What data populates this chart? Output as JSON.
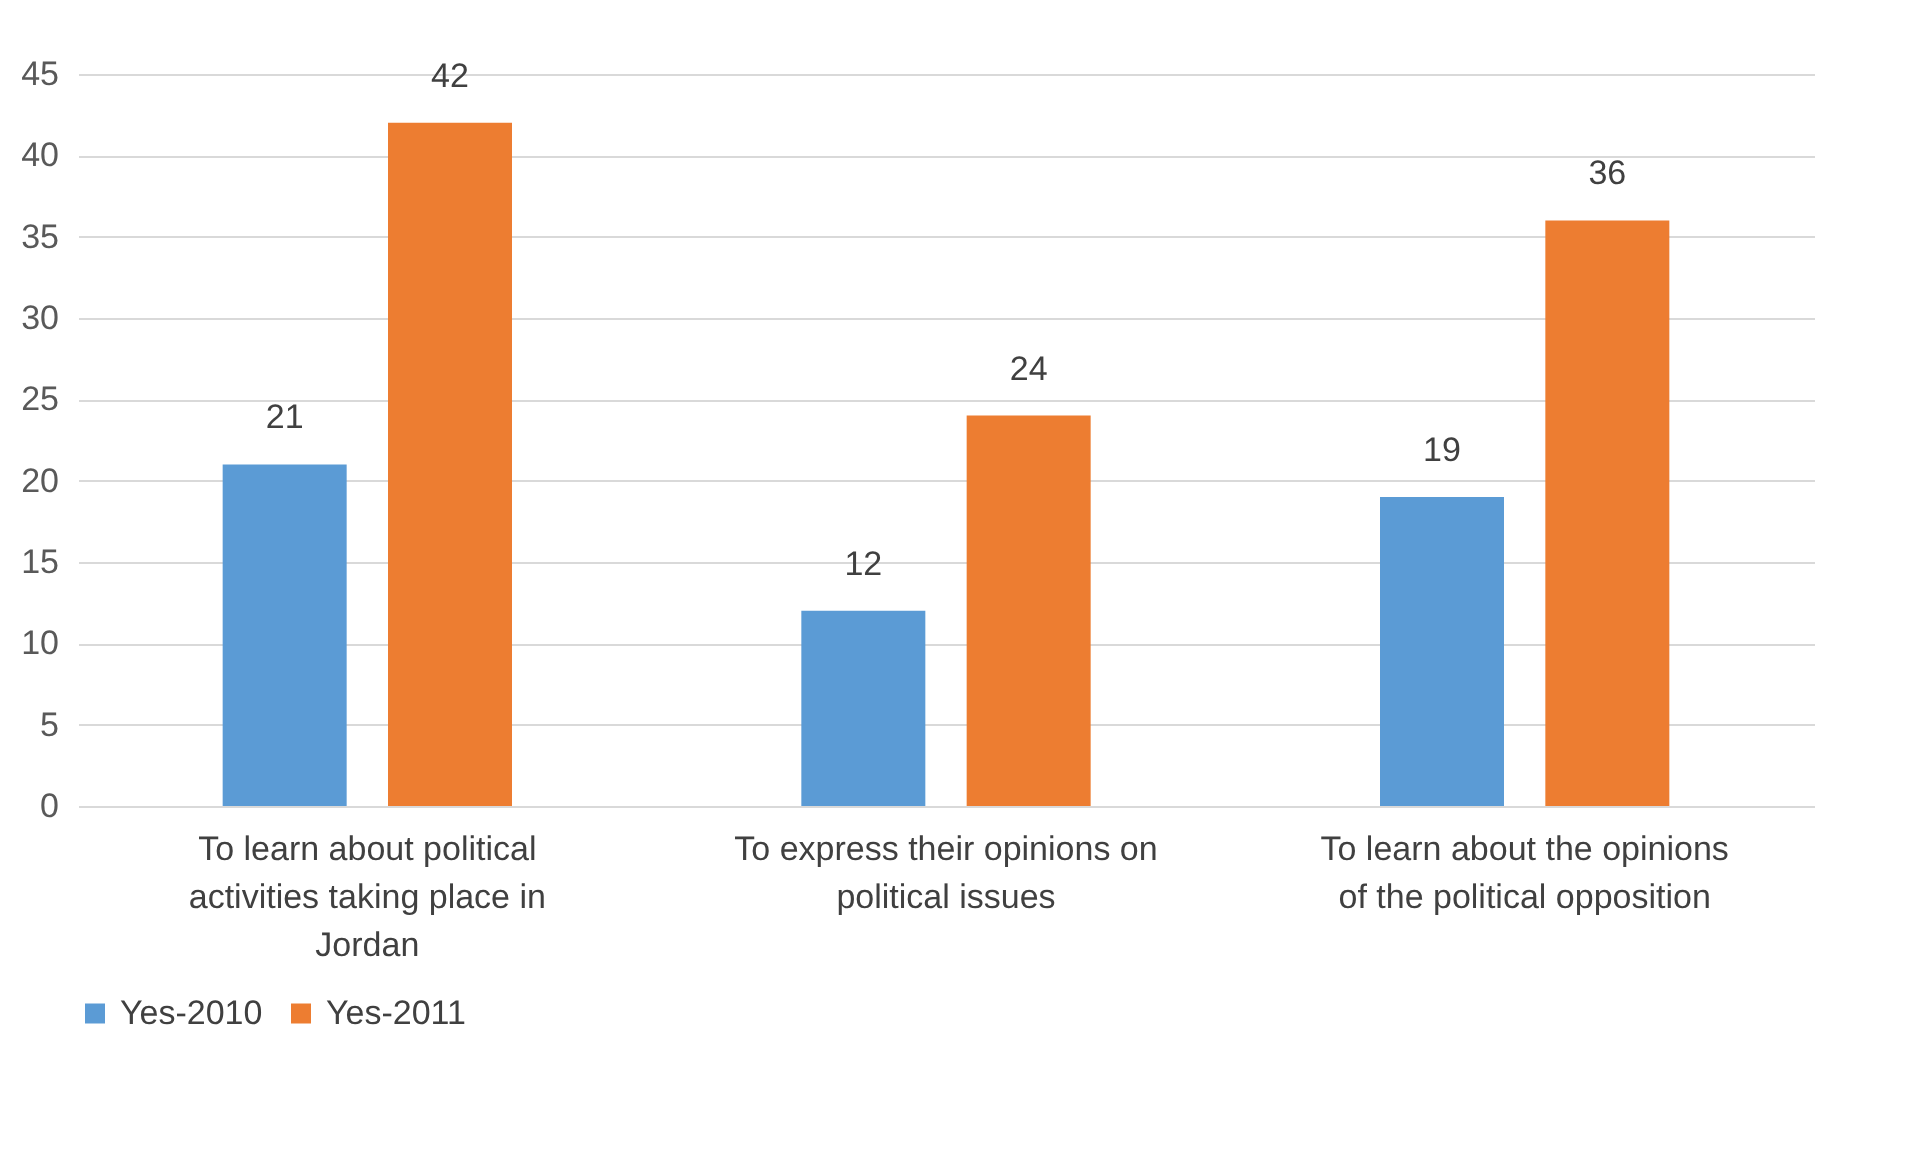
{
  "chart_data": {
    "type": "bar",
    "categories": [
      "To learn about political activities taking place in Jordan",
      "To express their opinions on political issues",
      "To learn about the opinions of the political opposition"
    ],
    "series": [
      {
        "name": "Yes-2010",
        "color": "#5b9bd5",
        "values": [
          21,
          12,
          19
        ]
      },
      {
        "name": "Yes-2011",
        "color": "#ed7d31",
        "values": [
          42,
          24,
          36
        ]
      }
    ],
    "ylim": [
      0,
      45
    ],
    "yticks": [
      0,
      5,
      10,
      15,
      20,
      25,
      30,
      35,
      40,
      45
    ],
    "grid": "y",
    "legend": "bottom",
    "data_labels": true
  }
}
